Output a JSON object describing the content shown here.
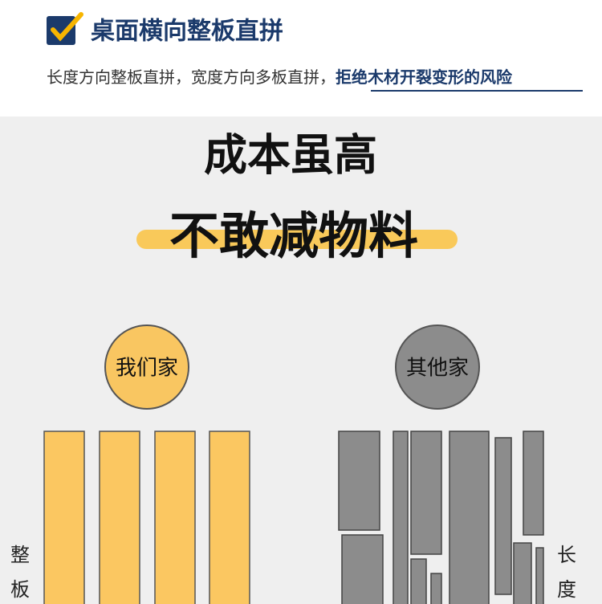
{
  "header": {
    "title": "桌面横向整板直拼",
    "subtitle": "长度方向整板直拼，宽度方向多板直拼，",
    "highlight": "拒绝木材开裂变形的风险"
  },
  "headline": {
    "line1": "成本虽高",
    "line2": "不敢减物料"
  },
  "comparison": {
    "ours": {
      "label": "我们家"
    },
    "theirs": {
      "label": "其他家"
    }
  },
  "side_labels": {
    "left": [
      "整",
      "板"
    ],
    "right": [
      "长",
      "度"
    ]
  }
}
